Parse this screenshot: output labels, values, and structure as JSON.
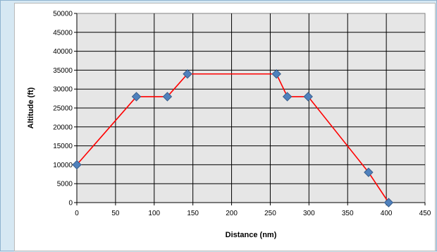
{
  "chart_data": {
    "type": "line",
    "title": "",
    "xlabel": "Distance (nm)",
    "ylabel": "Altitude (ft)",
    "xlim": [
      0,
      450
    ],
    "ylim": [
      0,
      50000
    ],
    "x_ticks": [
      "0",
      "50",
      "100",
      "150",
      "200",
      "250",
      "300",
      "350",
      "400",
      "450"
    ],
    "y_ticks": [
      "0",
      "5000",
      "10000",
      "15000",
      "20000",
      "25000",
      "30000",
      "35000",
      "40000",
      "45000",
      "50000"
    ],
    "grid": true,
    "legend": "none",
    "series": [
      {
        "line_color": "#ff0000",
        "marker_color": "#4f81bd",
        "marker": "diamond",
        "points": [
          {
            "x": 0,
            "y": 10000
          },
          {
            "x": 77,
            "y": 28000
          },
          {
            "x": 117,
            "y": 28000
          },
          {
            "x": 143,
            "y": 34000
          },
          {
            "x": 258,
            "y": 34000
          },
          {
            "x": 272,
            "y": 28000
          },
          {
            "x": 299,
            "y": 28000
          },
          {
            "x": 377,
            "y": 8000
          },
          {
            "x": 403,
            "y": 0
          }
        ]
      }
    ]
  }
}
